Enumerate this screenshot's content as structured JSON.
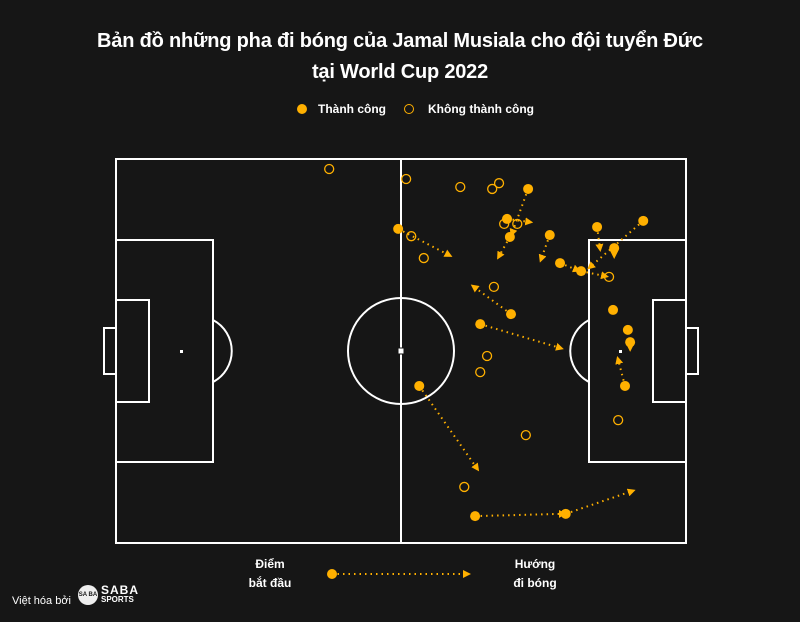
{
  "title_line1": "Bản đồ những pha đi bóng của Jamal Musiala cho đội tuyển Đức",
  "title_line2": "tại World Cup 2022",
  "legend": {
    "success": "Thành công",
    "fail": "Không thành công"
  },
  "footer": {
    "start_line1": "Điểm",
    "start_line2": "bắt đầu",
    "dir_line1": "Hướng",
    "dir_line2": "đi bóng",
    "credit": "Việt hóa bởi",
    "logo_badge": "SA BA",
    "logo_word1": "SABA",
    "logo_word2": "SPORTS"
  },
  "colors": {
    "accent": "#FFB000",
    "background": "#161616",
    "lines": "#FFFFFF"
  },
  "chart_data": {
    "type": "scatter",
    "pitch": {
      "xlim": [
        0,
        100
      ],
      "ylim": [
        0,
        100
      ],
      "attack_direction": "right"
    },
    "successful": [
      {
        "x": 72.3,
        "y": 7.8,
        "end_x": 69.5,
        "end_y": 19.3
      },
      {
        "x": 68.6,
        "y": 15.6,
        "end_x": 72.5,
        "end_y": 16.4
      },
      {
        "x": 69.1,
        "y": 20.3,
        "end_x": 67.2,
        "end_y": 25.3
      },
      {
        "x": 49.5,
        "y": 18.2,
        "end_x": 58.4,
        "end_y": 25.0
      },
      {
        "x": 76.1,
        "y": 19.8,
        "end_x": 74.6,
        "end_y": 26.0
      },
      {
        "x": 84.4,
        "y": 17.7,
        "end_x": 84.9,
        "end_y": 23.2
      },
      {
        "x": 92.5,
        "y": 16.1,
        "end_x": 83.2,
        "end_y": 28.1
      },
      {
        "x": 77.9,
        "y": 27.1,
        "end_x": 80.9,
        "end_y": 28.9
      },
      {
        "x": 81.6,
        "y": 29.2,
        "end_x": 85.8,
        "end_y": 30.5
      },
      {
        "x": 87.4,
        "y": 23.2,
        "end_x": 87.4,
        "end_y": 25.0
      },
      {
        "x": 69.3,
        "y": 40.4,
        "end_x": 62.8,
        "end_y": 33.3
      },
      {
        "x": 63.9,
        "y": 43.0,
        "end_x": 77.9,
        "end_y": 49.2
      },
      {
        "x": 53.2,
        "y": 59.1,
        "end_x": 63.3,
        "end_y": 80.5
      },
      {
        "x": 63.0,
        "y": 93.0,
        "end_x": 78.4,
        "end_y": 92.4
      },
      {
        "x": 78.9,
        "y": 92.4,
        "end_x": 90.5,
        "end_y": 86.5
      },
      {
        "x": 87.2,
        "y": 39.3
      },
      {
        "x": 89.8,
        "y": 44.5
      },
      {
        "x": 90.2,
        "y": 47.7,
        "end_x": 90.2,
        "end_y": 49.2
      },
      {
        "x": 89.3,
        "y": 59.1,
        "end_x": 88.1,
        "end_y": 52.3
      }
    ],
    "unsuccessful": [
      {
        "x": 37.4,
        "y": 2.6
      },
      {
        "x": 50.9,
        "y": 5.2
      },
      {
        "x": 60.4,
        "y": 7.3
      },
      {
        "x": 66.0,
        "y": 7.8
      },
      {
        "x": 67.2,
        "y": 6.3
      },
      {
        "x": 68.1,
        "y": 16.9
      },
      {
        "x": 70.4,
        "y": 16.9
      },
      {
        "x": 51.8,
        "y": 20.1
      },
      {
        "x": 54.0,
        "y": 25.8
      },
      {
        "x": 86.5,
        "y": 30.7
      },
      {
        "x": 66.3,
        "y": 33.3
      },
      {
        "x": 65.1,
        "y": 51.3
      },
      {
        "x": 63.9,
        "y": 55.5
      },
      {
        "x": 88.1,
        "y": 68.0
      },
      {
        "x": 71.9,
        "y": 71.9
      },
      {
        "x": 61.1,
        "y": 85.4
      }
    ]
  }
}
